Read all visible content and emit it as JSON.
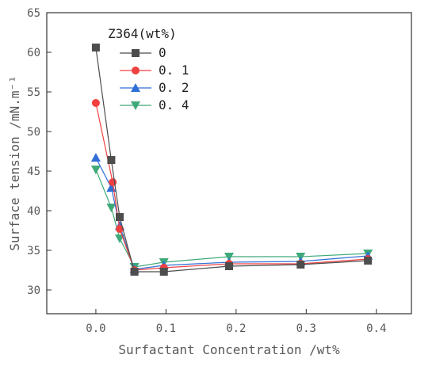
{
  "chart_data": {
    "type": "line",
    "title": "",
    "xlabel": "Surfactant Concentration /wt%",
    "ylabel": "Surface tension /mN.m⁻¹",
    "xlim": [
      -0.07,
      0.45
    ],
    "ylim": [
      27,
      65
    ],
    "xticks": [
      "0.0",
      "0.1",
      "0.2",
      "0.3",
      "0.4"
    ],
    "xtick_values": [
      0.0,
      0.1,
      0.2,
      0.3,
      0.4
    ],
    "yticks": [
      "30",
      "35",
      "40",
      "45",
      "50",
      "55",
      "60",
      "65"
    ],
    "ytick_values": [
      30,
      35,
      40,
      45,
      50,
      55,
      60,
      65
    ],
    "grid": false,
    "legend": {
      "title": "Z364(wt%)",
      "placement": "top-center"
    },
    "series": [
      {
        "name": "0",
        "color": "#4d4d4d",
        "marker": "square",
        "x": [
          0.0,
          0.022,
          0.034,
          0.055,
          0.097,
          0.19,
          0.292,
          0.388
        ],
        "y": [
          60.6,
          46.4,
          39.2,
          32.3,
          32.3,
          33.0,
          33.2,
          33.7
        ]
      },
      {
        "name": "0. 1",
        "color": "#f04040",
        "marker": "circle",
        "x": [
          0.0,
          0.024,
          0.034,
          0.055,
          0.097,
          0.19,
          0.292,
          0.388
        ],
        "y": [
          53.6,
          43.6,
          37.7,
          32.5,
          32.8,
          33.3,
          33.3,
          33.9
        ]
      },
      {
        "name": "0. 2",
        "color": "#2f6fd6",
        "marker": "triangle-up",
        "x": [
          0.0,
          0.022,
          0.034,
          0.055,
          0.097,
          0.19,
          0.292,
          0.388
        ],
        "y": [
          46.7,
          42.9,
          38.1,
          32.6,
          33.1,
          33.5,
          33.6,
          34.3
        ]
      },
      {
        "name": "0. 4",
        "color": "#3fa97a",
        "marker": "triangle-down",
        "x": [
          0.0,
          0.022,
          0.034,
          0.055,
          0.097,
          0.19,
          0.292,
          0.388
        ],
        "y": [
          45.2,
          40.4,
          36.5,
          32.9,
          33.5,
          34.2,
          34.2,
          34.6
        ]
      }
    ]
  }
}
